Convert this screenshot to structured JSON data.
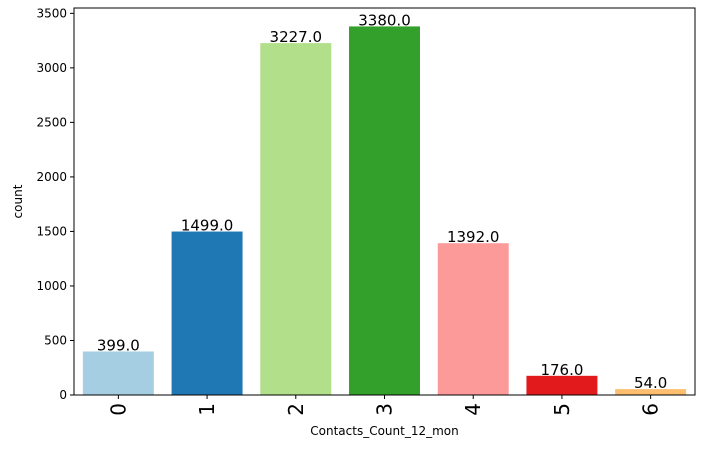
{
  "chart_data": {
    "type": "bar",
    "title": "",
    "xlabel": "Contacts_Count_12_mon",
    "ylabel": "count",
    "categories": [
      "0",
      "1",
      "2",
      "3",
      "4",
      "5",
      "6"
    ],
    "values": [
      399,
      1499,
      3227,
      3380,
      1392,
      176,
      54
    ],
    "data_labels": [
      "399.0",
      "1499.0",
      "3227.0",
      "3380.0",
      "1392.0",
      "176.0",
      "54.0"
    ],
    "colors": [
      "#a6cee3",
      "#1f78b4",
      "#b2df8a",
      "#33a02c",
      "#fb9a99",
      "#e31a1c",
      "#fdbf6f"
    ],
    "ylim": [
      0,
      3549
    ],
    "yticks": [
      0,
      500,
      1000,
      1500,
      2000,
      2500,
      3000,
      3500
    ],
    "grid": false,
    "legend": "none"
  }
}
